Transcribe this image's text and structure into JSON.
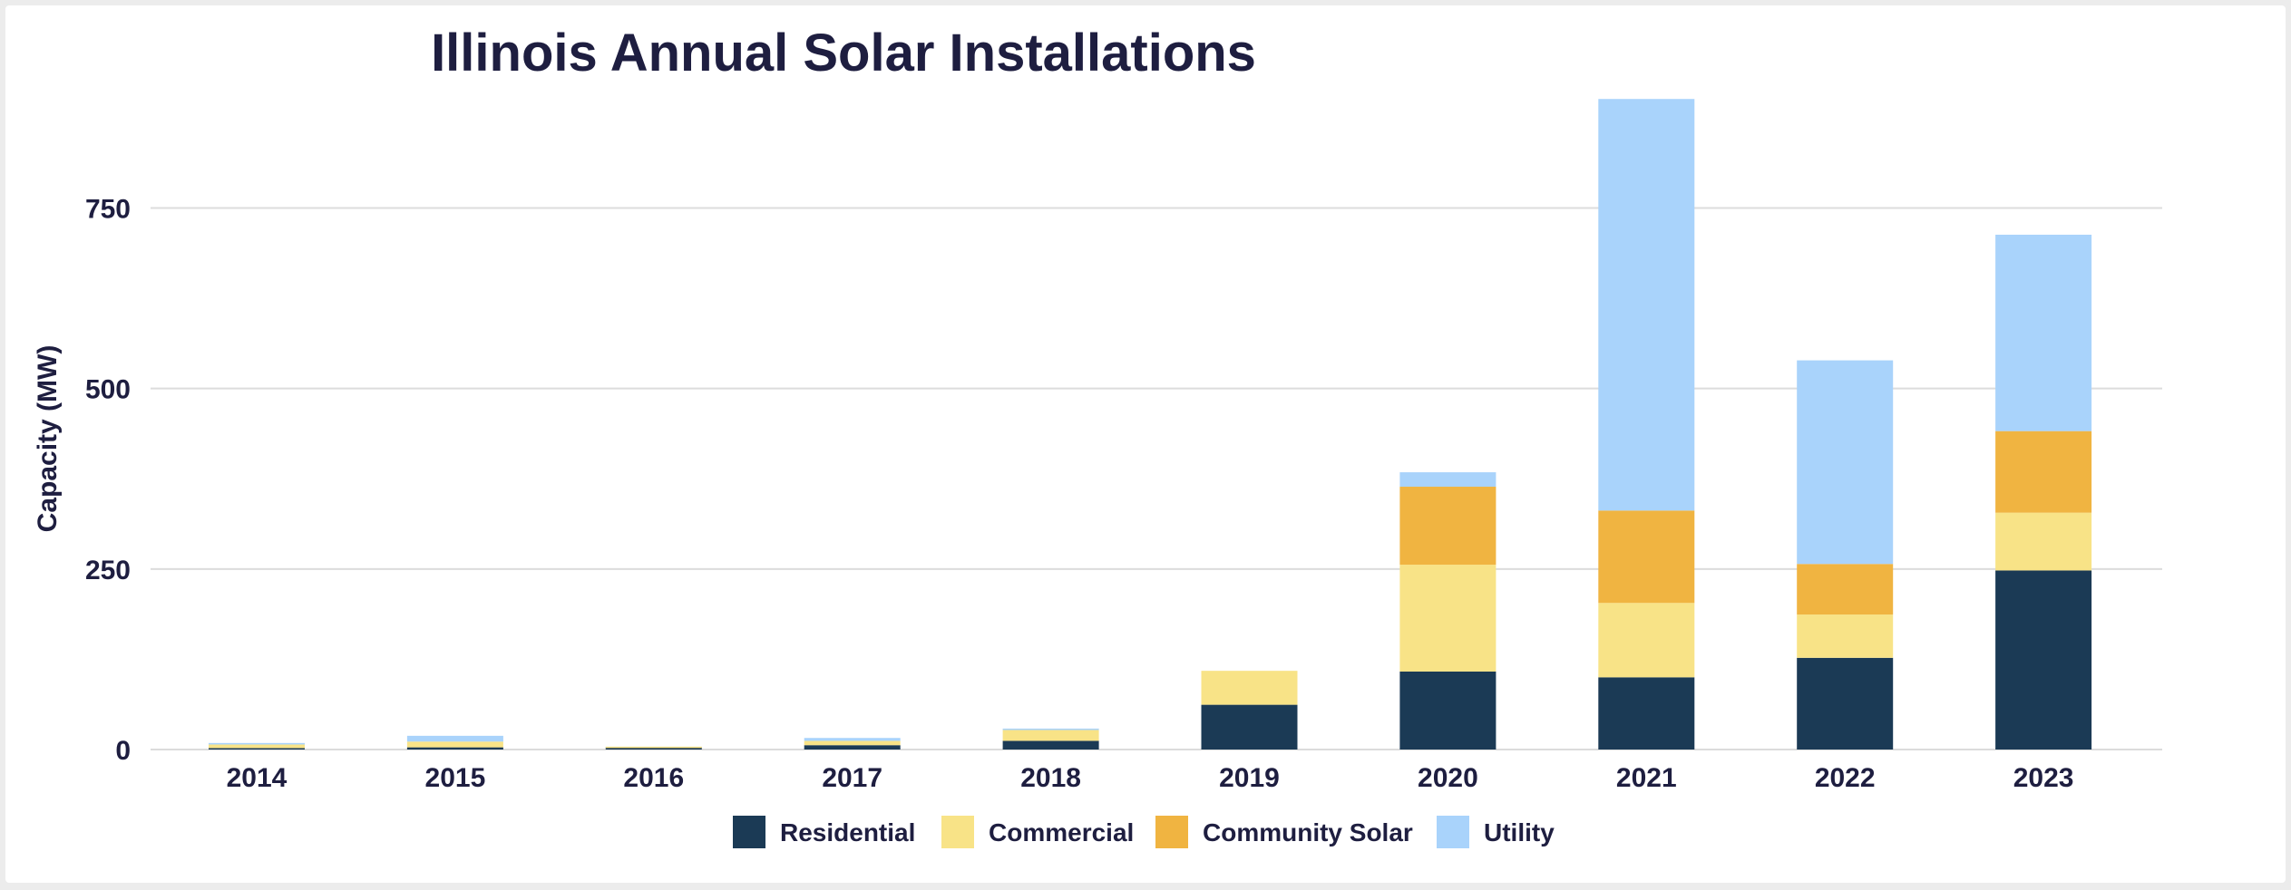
{
  "chart_data": {
    "type": "bar",
    "stacked": true,
    "title": "Illinois Annual Solar Installations",
    "xlabel": "",
    "ylabel": "Capacity (MW)",
    "ylim": [
      0,
      900
    ],
    "yticks": [
      0,
      250,
      500,
      750
    ],
    "grid": true,
    "legend_position": "bottom",
    "categories": [
      "2014",
      "2015",
      "2016",
      "2017",
      "2018",
      "2019",
      "2020",
      "2021",
      "2022",
      "2023"
    ],
    "series": [
      {
        "name": "Residential",
        "color": "#1b3a55",
        "values": [
          2,
          3,
          3,
          6,
          12,
          62,
          108,
          100,
          127,
          248
        ]
      },
      {
        "name": "Commercial",
        "color": "#f8e387",
        "values": [
          5,
          8,
          1,
          6,
          15,
          47,
          148,
          103,
          60,
          80
        ]
      },
      {
        "name": "Community Solar",
        "color": "#f0b441",
        "values": [
          0,
          0,
          0,
          0,
          0,
          0,
          108,
          128,
          70,
          113
        ]
      },
      {
        "name": "Utility",
        "color": "#a9d3fb",
        "values": [
          2,
          8,
          0,
          4,
          2,
          0,
          20,
          570,
          282,
          272
        ]
      }
    ],
    "colors": {
      "text": "#1e1e40",
      "grid": "#dcdcdc"
    }
  }
}
